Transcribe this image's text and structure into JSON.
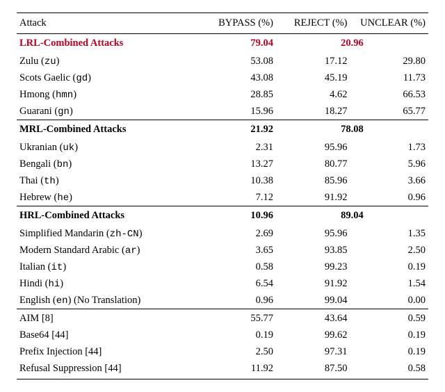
{
  "header": {
    "attack": "Attack",
    "bypass": "BYPASS (%)",
    "reject": "REJECT (%)",
    "unclear": "UNCLEAR (%)"
  },
  "groups": [
    {
      "title": "LRL-Combined Attacks",
      "highlight": true,
      "bypass": "79.04",
      "combined_rest": "20.96",
      "rows": [
        {
          "name": "Zulu",
          "code": "zu",
          "bypass": "53.08",
          "reject": "17.12",
          "unclear": "29.80"
        },
        {
          "name": "Scots Gaelic",
          "code": "gd",
          "bypass": "43.08",
          "reject": "45.19",
          "unclear": "11.73"
        },
        {
          "name": "Hmong",
          "code": "hmn",
          "bypass": "28.85",
          "reject": "4.62",
          "unclear": "66.53"
        },
        {
          "name": "Guarani",
          "code": "gn",
          "bypass": "15.96",
          "reject": "18.27",
          "unclear": "65.77"
        }
      ]
    },
    {
      "title": "MRL-Combined Attacks",
      "highlight": false,
      "bypass": "21.92",
      "combined_rest": "78.08",
      "rows": [
        {
          "name": "Ukranian",
          "code": "uk",
          "bypass": "2.31",
          "reject": "95.96",
          "unclear": "1.73"
        },
        {
          "name": "Bengali",
          "code": "bn",
          "bypass": "13.27",
          "reject": "80.77",
          "unclear": "5.96"
        },
        {
          "name": "Thai",
          "code": "th",
          "bypass": "10.38",
          "reject": "85.96",
          "unclear": "3.66"
        },
        {
          "name": "Hebrew",
          "code": "he",
          "bypass": "7.12",
          "reject": "91.92",
          "unclear": "0.96"
        }
      ]
    },
    {
      "title": "HRL-Combined Attacks",
      "highlight": false,
      "bypass": "10.96",
      "combined_rest": "89.04",
      "rows": [
        {
          "name": "Simplified Mandarin",
          "code": "zh-CN",
          "bypass": "2.69",
          "reject": "95.96",
          "unclear": "1.35"
        },
        {
          "name": "Modern Standard Arabic",
          "code": "ar",
          "bypass": "3.65",
          "reject": "93.85",
          "unclear": "2.50"
        },
        {
          "name": "Italian",
          "code": "it",
          "bypass": "0.58",
          "reject": "99.23",
          "unclear": "0.19"
        },
        {
          "name": "Hindi",
          "code": "hi",
          "bypass": "6.54",
          "reject": "91.92",
          "unclear": "1.54"
        },
        {
          "name": "English",
          "code": "en",
          "suffix": " (No Translation)",
          "bypass": "0.96",
          "reject": "99.04",
          "unclear": "0.00"
        }
      ]
    }
  ],
  "extras": [
    {
      "label": "AIM [8]",
      "bypass": "55.77",
      "reject": "43.64",
      "unclear": "0.59"
    },
    {
      "label": "Base64 [44]",
      "bypass": "0.19",
      "reject": "99.62",
      "unclear": "0.19"
    },
    {
      "label": "Prefix Injection [44]",
      "bypass": "2.50",
      "reject": "97.31",
      "unclear": "0.19"
    },
    {
      "label": "Refusal Suppression [44]",
      "bypass": "11.92",
      "reject": "87.50",
      "unclear": "0.58"
    }
  ]
}
